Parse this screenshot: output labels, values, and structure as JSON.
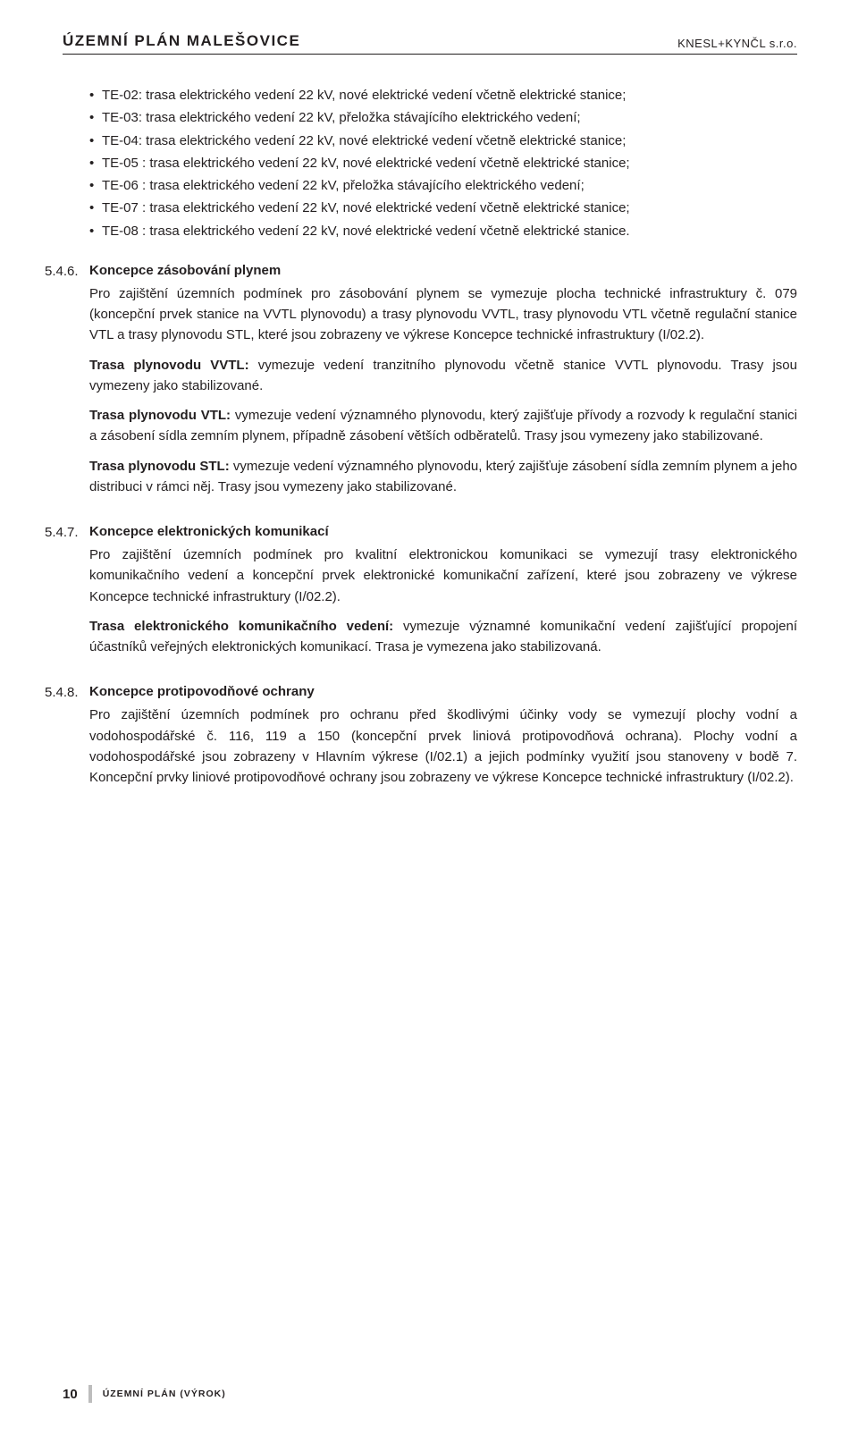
{
  "header": {
    "left": "ÚZEMNÍ PLÁN MALEŠOVICE",
    "right": "KNESL+KYNČL s.r.o."
  },
  "te_items": [
    "TE-02: trasa elektrického vedení 22 kV, nové elektrické vedení včetně elektrické stanice;",
    "TE-03: trasa elektrického vedení 22 kV, přeložka stávajícího elektrického vedení;",
    "TE-04: trasa elektrického vedení 22 kV, nové elektrické vedení včetně elektrické stanice;",
    "TE-05 : trasa elektrického vedení 22 kV, nové elektrické vedení včetně elektrické stanice;",
    "TE-06 : trasa elektrického vedení 22 kV, přeložka stávajícího elektrického vedení;",
    "TE-07 : trasa elektrického vedení 22 kV, nové elektrické vedení včetně elektrické stanice;",
    "TE-08 : trasa elektrického vedení 22 kV, nové elektrické vedení včetně elektrické stanice."
  ],
  "sections": {
    "s546": {
      "num": "5.4.6.",
      "heading": "Koncepce zásobování plynem",
      "p1": "Pro zajištění územních podmínek pro zásobování plynem se vymezuje plocha technické infrastruktury č. 079 (koncepční prvek stanice na VVTL plynovodu) a trasy plynovodu VVTL, trasy plynovodu VTL včetně regulační stanice VTL a trasy plynovodu STL, které jsou zobrazeny ve výkrese Koncepce technické infrastruktury (I/02.2).",
      "p2a": "Trasa plynovodu VVTL:",
      "p2b": " vymezuje vedení tranzitního plynovodu včetně stanice VVTL plynovodu. Trasy jsou vymezeny jako stabilizované.",
      "p3a": "Trasa plynovodu VTL:",
      "p3b": " vymezuje vedení významného plynovodu, který zajišťuje přívody a rozvody k regulační stanici a zásobení sídla zemním plynem, případně zásobení větších odběratelů. Trasy jsou vymezeny jako stabilizované.",
      "p4a": "Trasa plynovodu STL:",
      "p4b": " vymezuje vedení významného plynovodu, který zajišťuje zásobení sídla zemním plynem a jeho distribuci v rámci něj. Trasy jsou vymezeny jako stabilizované."
    },
    "s547": {
      "num": "5.4.7.",
      "heading": "Koncepce elektronických komunikací",
      "p1": "Pro zajištění územních podmínek pro kvalitní elektronickou komunikaci se vymezují trasy elektronického komunikačního vedení a koncepční prvek elektronické komunikační zařízení, které jsou zobrazeny ve výkrese Koncepce technické infrastruktury (I/02.2).",
      "p2a": "Trasa elektronického komunikačního vedení:",
      "p2b": " vymezuje významné komunikační vedení zajišťující propojení účastníků veřejných elektronických komunikací. Trasa je vymezena jako stabilizovaná."
    },
    "s548": {
      "num": "5.4.8.",
      "heading": "Koncepce protipovodňové ochrany",
      "p1": "Pro zajištění územních podmínek pro ochranu před škodlivými účinky vody se vymezují plochy vodní a vodohospodářské č. 116, 119 a 150 (koncepční prvek liniová protipovodňová ochrana). Plochy vodní a vodohospodářské jsou zobrazeny v Hlavním výkrese (I/02.1) a jejich podmínky využití jsou stanoveny v bodě 7. Koncepční prvky liniové protipovodňové ochrany jsou zobrazeny ve výkrese Koncepce technické infrastruktury (I/02.2)."
    }
  },
  "footer": {
    "page": "10",
    "label": "ÚZEMNÍ PLÁN (VÝROK)"
  }
}
